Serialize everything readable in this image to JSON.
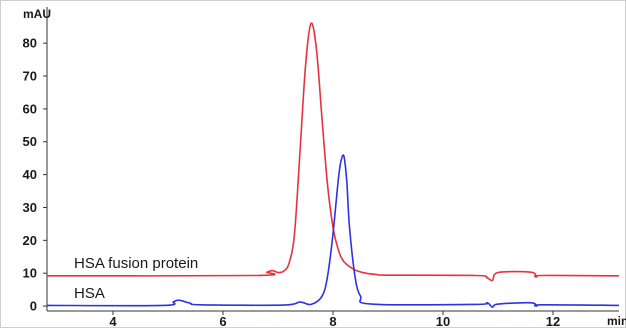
{
  "chart_data": {
    "type": "line",
    "title": "",
    "xlabel": "",
    "ylabel": "",
    "x_unit": "min",
    "y_unit": "mAU",
    "xlim": [
      2.8,
      13.2
    ],
    "ylim": [
      -1.5,
      91
    ],
    "x_ticks": [
      4,
      6,
      8,
      10,
      12
    ],
    "y_ticks": [
      0,
      10,
      20,
      30,
      40,
      50,
      60,
      70,
      80
    ],
    "grid": false,
    "legend": "none",
    "series": [
      {
        "name": "HSA fusion protein",
        "color": "#e8323c",
        "x": [
          2.8,
          6.6,
          6.8,
          6.9,
          7.0,
          7.1,
          7.2,
          7.3,
          7.4,
          7.5,
          7.6,
          7.7,
          7.8,
          7.9,
          8.0,
          8.1,
          8.2,
          8.4,
          8.6,
          8.8,
          9.0,
          10.6,
          10.8,
          10.9,
          11.0,
          11.6,
          11.7,
          11.8,
          13.2
        ],
        "y": [
          9.2,
          9.3,
          10.3,
          10.8,
          10.2,
          10.6,
          13.0,
          22.0,
          47.0,
          73.0,
          86.0,
          78.0,
          57.0,
          37.0,
          24.0,
          17.0,
          13.5,
          11.0,
          10.0,
          9.6,
          9.4,
          9.3,
          8.6,
          7.8,
          10.2,
          10.3,
          8.9,
          9.3,
          9.2
        ],
        "label": "HSA fusion protein"
      },
      {
        "name": "HSA",
        "color": "#2c33e0",
        "x": [
          2.8,
          4.9,
          5.1,
          5.2,
          5.4,
          5.6,
          7.1,
          7.4,
          7.6,
          7.8,
          7.9,
          8.0,
          8.1,
          8.15,
          8.2,
          8.25,
          8.3,
          8.4,
          8.5,
          8.7,
          10.6,
          10.8,
          10.9,
          11.0,
          11.6,
          11.7,
          11.8,
          13.2
        ],
        "y": [
          0.2,
          0.2,
          1.3,
          1.8,
          0.9,
          0.4,
          0.3,
          1.2,
          0.5,
          3.0,
          9.0,
          22.0,
          39.0,
          44.5,
          45.5,
          38.0,
          24.0,
          9.0,
          3.0,
          0.6,
          0.5,
          1.0,
          -0.3,
          0.6,
          1.0,
          0.0,
          0.4,
          0.2
        ],
        "label": "HSA"
      }
    ]
  }
}
